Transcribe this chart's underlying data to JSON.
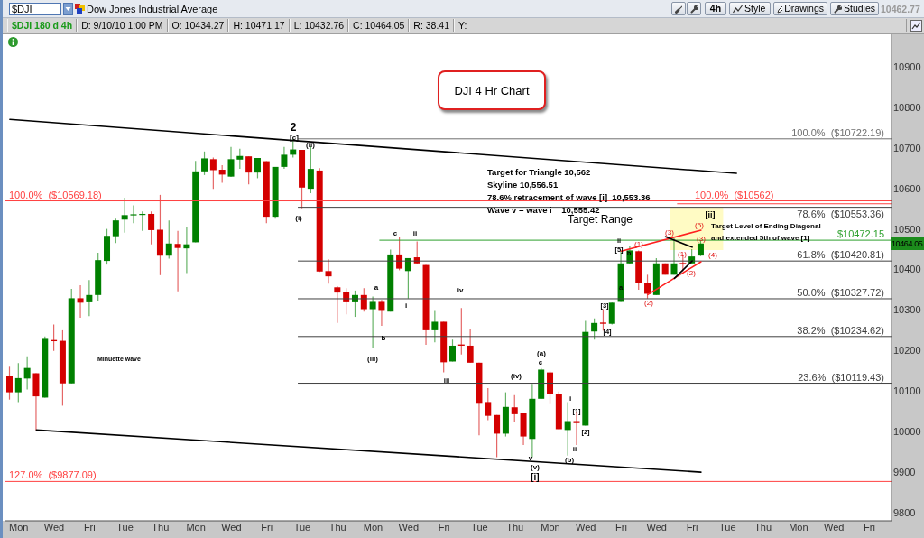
{
  "chart_data": {
    "type": "candlestick",
    "title": "DJI 4 Hr Chart",
    "categories": [
      null,
      "Mon",
      null,
      null,
      null,
      "Wed",
      null,
      null,
      null,
      "Fri",
      null,
      null,
      null,
      "Tue",
      null,
      null,
      null,
      "Thu",
      null,
      null,
      null,
      "Mon",
      null,
      null,
      null,
      "Wed",
      null,
      null,
      null,
      "Fri",
      null,
      null,
      null,
      "Tue",
      null,
      null,
      null,
      "Thu",
      null,
      null,
      null,
      "Mon",
      null,
      null,
      null,
      "Wed",
      null,
      null,
      null,
      "Fri",
      null,
      null,
      null,
      "Tue",
      null,
      null,
      null,
      "Thu",
      null,
      null,
      null,
      "Mon",
      null,
      null,
      null,
      "Wed",
      null,
      null,
      null,
      "Fri",
      null,
      null,
      null,
      "Wed",
      null,
      null,
      null,
      "Fri",
      null,
      null,
      null,
      "Tue",
      null,
      null,
      null,
      "Thu",
      null,
      null,
      null,
      "Mon",
      null,
      null,
      null,
      "Wed",
      null,
      null,
      null,
      "Fri",
      null,
      null
    ],
    "ohlc": [
      [
        10138,
        10160,
        10079,
        10097
      ],
      [
        10097,
        10169,
        10073,
        10132
      ],
      [
        10131,
        10186,
        10104,
        10157
      ],
      [
        10144,
        10144,
        10004,
        10087
      ],
      [
        10084,
        10235,
        10084,
        10231
      ],
      [
        10226,
        10264,
        10199,
        10223
      ],
      [
        10224,
        10250,
        10064,
        10119
      ],
      [
        10119,
        10352,
        10119,
        10329
      ],
      [
        10329,
        10361,
        10281,
        10318
      ],
      [
        10319,
        10374,
        10285,
        10337
      ],
      [
        10337,
        10441,
        10322,
        10423
      ],
      [
        10421,
        10500,
        10412,
        10483
      ],
      [
        10482,
        10525,
        10465,
        10521
      ],
      [
        10523,
        10577,
        10491,
        10534
      ],
      [
        10534,
        10558,
        10514,
        10536
      ],
      [
        10535,
        10543,
        10495,
        10537
      ],
      [
        10537,
        10543,
        10462,
        10497
      ],
      [
        10498,
        10584,
        10386,
        10434
      ],
      [
        10434,
        10521,
        10427,
        10464
      ],
      [
        10463,
        10495,
        10346,
        10453
      ],
      [
        10452,
        10506,
        10391,
        10462
      ],
      [
        10467,
        10668,
        10467,
        10642
      ],
      [
        10642,
        10691,
        10633,
        10674
      ],
      [
        10672,
        10676,
        10599,
        10645
      ],
      [
        10646,
        10657,
        10614,
        10634
      ],
      [
        10629,
        10702,
        10628,
        10672
      ],
      [
        10671,
        10698,
        10648,
        10680
      ],
      [
        10679,
        10679,
        10610,
        10639
      ],
      [
        10639,
        10675,
        10625,
        10675
      ],
      [
        10667,
        10667,
        10514,
        10530
      ],
      [
        10530,
        10653,
        10525,
        10653
      ],
      [
        10653,
        10702,
        10648,
        10683
      ],
      [
        10683,
        10722,
        10676,
        10696
      ],
      [
        10695,
        10695,
        10551,
        10602
      ],
      [
        10599,
        10704,
        10588,
        10648
      ],
      [
        10644,
        10650,
        10394,
        10395
      ],
      [
        10396,
        10425,
        10365,
        10383
      ],
      [
        10356,
        10359,
        10268,
        10343
      ],
      [
        10345,
        10354,
        10289,
        10319
      ],
      [
        10319,
        10348,
        10283,
        10337
      ],
      [
        10337,
        10354,
        10296,
        10302
      ],
      [
        10302,
        10333,
        10207,
        10320
      ],
      [
        10320,
        10325,
        10261,
        10300
      ],
      [
        10296,
        10449,
        10296,
        10437
      ],
      [
        10437,
        10480,
        10398,
        10402
      ],
      [
        10396,
        10428,
        10328,
        10428
      ],
      [
        10430,
        10469,
        10413,
        10415
      ],
      [
        10411,
        10411,
        10214,
        10250
      ],
      [
        10250,
        10300,
        10220,
        10271
      ],
      [
        10271,
        10271,
        10146,
        10171
      ],
      [
        10173,
        10227,
        10173,
        10212
      ],
      [
        10215,
        10305,
        10190,
        10212
      ],
      [
        10212,
        10253,
        10170,
        10170
      ],
      [
        10170,
        10170,
        9991,
        10071
      ],
      [
        10073,
        10107,
        10028,
        10039
      ],
      [
        10041,
        10041,
        9937,
        9995
      ],
      [
        9995,
        10097,
        9988,
        10061
      ],
      [
        10060,
        10090,
        10023,
        10043
      ],
      [
        10045,
        10045,
        9967,
        9988
      ],
      [
        9982,
        10118,
        9937,
        10081
      ],
      [
        10081,
        10157,
        10081,
        10153
      ],
      [
        10146,
        10149,
        10070,
        10092
      ],
      [
        10092,
        10099,
        10006,
        10006
      ],
      [
        10004,
        10073,
        9941,
        10026
      ],
      [
        10026,
        10050,
        9967,
        10021
      ],
      [
        10015,
        10273,
        10015,
        10246
      ],
      [
        10247,
        10279,
        10227,
        10268
      ],
      [
        10269,
        10302,
        10249,
        10266
      ],
      [
        10266,
        10318,
        10264,
        10318
      ],
      [
        10320,
        10447,
        10320,
        10415
      ],
      [
        10415,
        10459,
        10413,
        10447
      ],
      [
        10445,
        10447,
        10350,
        10366
      ],
      [
        10366,
        10387,
        10328,
        10340
      ],
      [
        10337,
        10428,
        10337,
        10415
      ],
      [
        10415,
        10415,
        10387,
        10387
      ],
      [
        10387,
        10477,
        10387,
        10415
      ],
      [
        10416,
        10436,
        10395,
        10413
      ],
      [
        10415,
        10450,
        10413,
        10432
      ],
      [
        10434.27,
        10471.17,
        10432.76,
        10464.05
      ],
      null,
      null,
      null,
      null,
      null,
      null,
      null,
      null,
      null,
      null,
      null,
      null,
      null,
      null,
      null,
      null,
      null,
      null,
      null,
      null,
      null
    ],
    "colors": [
      "#d40000",
      "#008000",
      "#008000",
      "#d40000",
      "#008000",
      "#d40000",
      "#d40000",
      "#008000",
      "#d40000",
      "#008000",
      "#008000",
      "#008000",
      "#008000",
      "#008000",
      "#008000",
      "#008000",
      "#d40000",
      "#d40000",
      "#008000",
      "#d40000",
      "#008000",
      "#008000",
      "#008000",
      "#d40000",
      "#d40000",
      "#008000",
      "#008000",
      "#d40000",
      "#008000",
      "#d40000",
      "#008000",
      "#008000",
      "#008000",
      "#d40000",
      "#008000",
      "#d40000",
      "#d40000",
      "#d40000",
      "#d40000",
      "#008000",
      "#d40000",
      "#008000",
      "#d40000",
      "#008000",
      "#d40000",
      "#008000",
      "#d40000",
      "#d40000",
      "#008000",
      "#d40000",
      "#008000",
      "#d40000",
      "#d40000",
      "#d40000",
      "#d40000",
      "#d40000",
      "#008000",
      "#d40000",
      "#d40000",
      "#008000",
      "#008000",
      "#d40000",
      "#d40000",
      "#008000",
      "#d40000",
      "#008000",
      "#008000",
      "#d40000",
      "#008000",
      "#008000",
      "#008000",
      "#d40000",
      "#d40000",
      "#008000",
      "#d40000",
      "#008000",
      "#d40000",
      "#008000",
      "#008000",
      null,
      null,
      null,
      null,
      null,
      null,
      null,
      null,
      null,
      null,
      null,
      null,
      null,
      null,
      null,
      null,
      null,
      null,
      null,
      null,
      null
    ],
    "series": [
      {
        "type": "line",
        "color": "#000000",
        "values": [
          10770,
          null,
          null,
          null,
          null,
          null,
          null,
          null,
          null,
          null,
          null,
          null,
          null,
          null,
          null,
          null,
          null,
          null,
          null,
          null,
          null,
          null,
          null,
          null,
          null,
          null,
          null,
          null,
          null,
          null,
          null,
          null,
          null,
          null,
          null,
          null,
          null,
          null,
          null,
          null,
          null,
          null,
          null,
          null,
          null,
          null,
          null,
          null,
          null,
          null,
          null,
          null,
          null,
          null,
          null,
          null,
          null,
          null,
          null,
          null,
          null,
          null,
          null,
          null,
          null,
          null,
          null,
          null,
          null,
          null,
          null,
          null,
          null,
          null,
          null,
          null,
          null,
          null,
          null,
          null,
          null,
          null,
          10637,
          null,
          null,
          null,
          null,
          null,
          null,
          null,
          null,
          null,
          null,
          null,
          null,
          null,
          null,
          null,
          null,
          null
        ]
      },
      {
        "type": "line",
        "color": "#000000",
        "values": [
          null,
          null,
          null,
          10004,
          null,
          null,
          null,
          null,
          null,
          null,
          null,
          null,
          null,
          null,
          null,
          null,
          null,
          null,
          null,
          null,
          null,
          null,
          null,
          null,
          null,
          null,
          null,
          null,
          null,
          null,
          null,
          null,
          null,
          null,
          null,
          null,
          null,
          null,
          null,
          null,
          null,
          null,
          null,
          null,
          null,
          null,
          null,
          null,
          null,
          null,
          null,
          null,
          null,
          null,
          null,
          null,
          null,
          null,
          null,
          null,
          null,
          null,
          null,
          null,
          null,
          null,
          null,
          null,
          null,
          null,
          null,
          null,
          null,
          null,
          null,
          null,
          null,
          null,
          9900,
          null,
          null,
          null,
          null,
          null,
          null,
          null,
          null,
          null,
          null,
          null,
          null,
          null,
          null,
          null,
          null,
          null,
          null,
          null,
          null,
          null
        ]
      },
      {
        "type": "line",
        "color": "#ff2020",
        "values": [
          null,
          null,
          null,
          null,
          null,
          null,
          null,
          null,
          null,
          null,
          null,
          null,
          null,
          null,
          null,
          null,
          null,
          null,
          null,
          null,
          null,
          null,
          null,
          null,
          null,
          null,
          null,
          null,
          null,
          null,
          null,
          null,
          null,
          null,
          null,
          null,
          null,
          null,
          null,
          null,
          null,
          null,
          null,
          null,
          null,
          null,
          null,
          null,
          null,
          null,
          null,
          null,
          null,
          null,
          null,
          null,
          null,
          null,
          null,
          null,
          null,
          null,
          null,
          null,
          null,
          null,
          null,
          null,
          null,
          10445,
          null,
          null,
          null,
          null,
          null,
          null,
          null,
          null,
          10497,
          null,
          null,
          null,
          null,
          null,
          null,
          null,
          null,
          null,
          null,
          null,
          null,
          null,
          null,
          null,
          null,
          null,
          null,
          null,
          null,
          null
        ]
      },
      {
        "type": "line",
        "color": "#ff2020",
        "values": [
          null,
          null,
          null,
          null,
          null,
          null,
          null,
          null,
          null,
          null,
          null,
          null,
          null,
          null,
          null,
          null,
          null,
          null,
          null,
          null,
          null,
          null,
          null,
          null,
          null,
          null,
          null,
          null,
          null,
          null,
          null,
          null,
          null,
          null,
          null,
          null,
          null,
          null,
          null,
          null,
          null,
          null,
          null,
          null,
          null,
          null,
          null,
          null,
          null,
          null,
          null,
          null,
          null,
          null,
          null,
          null,
          null,
          null,
          null,
          null,
          null,
          null,
          null,
          null,
          null,
          null,
          null,
          null,
          null,
          null,
          null,
          null,
          10338,
          null,
          null,
          null,
          null,
          null,
          10419,
          null,
          null,
          null,
          null,
          null,
          null,
          null,
          null,
          null,
          null,
          null,
          null,
          null,
          null,
          null,
          null,
          null,
          null,
          null,
          null,
          null
        ]
      },
      {
        "type": "line",
        "color": "#000000",
        "values": [
          null,
          null,
          null,
          null,
          null,
          null,
          null,
          null,
          null,
          null,
          null,
          null,
          null,
          null,
          null,
          null,
          null,
          null,
          null,
          null,
          null,
          null,
          null,
          null,
          null,
          null,
          null,
          null,
          null,
          null,
          null,
          null,
          null,
          null,
          null,
          null,
          null,
          null,
          null,
          null,
          null,
          null,
          null,
          null,
          null,
          null,
          null,
          null,
          null,
          null,
          null,
          null,
          null,
          null,
          null,
          null,
          null,
          null,
          null,
          null,
          null,
          null,
          null,
          null,
          null,
          null,
          null,
          null,
          null,
          null,
          null,
          null,
          null,
          null,
          10481,
          null,
          null,
          10455,
          null,
          null,
          null,
          null,
          null,
          null,
          null,
          null,
          null,
          null,
          null,
          null,
          null,
          null,
          null,
          null,
          null,
          null,
          null,
          null,
          null,
          null
        ]
      },
      {
        "type": "line",
        "color": "#000000",
        "values": [
          null,
          null,
          null,
          null,
          null,
          null,
          null,
          null,
          null,
          null,
          null,
          null,
          null,
          null,
          null,
          null,
          null,
          null,
          null,
          null,
          null,
          null,
          null,
          null,
          null,
          null,
          null,
          null,
          null,
          null,
          null,
          null,
          null,
          null,
          null,
          null,
          null,
          null,
          null,
          null,
          null,
          null,
          null,
          null,
          null,
          null,
          null,
          null,
          null,
          null,
          null,
          null,
          null,
          null,
          null,
          null,
          null,
          null,
          null,
          null,
          null,
          null,
          null,
          null,
          null,
          null,
          null,
          null,
          null,
          null,
          null,
          null,
          null,
          null,
          null,
          10378,
          null,
          10421,
          null,
          null,
          null,
          null,
          null,
          null,
          null,
          null,
          null,
          null,
          null,
          null,
          null,
          null,
          null,
          null,
          null,
          null,
          null,
          null,
          null,
          null
        ]
      }
    ],
    "ylim": [
      9780,
      10980
    ],
    "yticks": [
      9800,
      9900,
      10000,
      10100,
      10200,
      10300,
      10400,
      10500,
      10600,
      10700,
      10800,
      10900
    ],
    "bands": [
      {
        "axis": "y",
        "from": 10448,
        "to": 10553,
        "color": "#fffbc4"
      }
    ],
    "ref_lines": [
      {
        "axis": "y",
        "value": 10722.19,
        "label": "100.0%  ($10722.19)",
        "color": "#707070"
      },
      {
        "axis": "y",
        "value": 10569.18,
        "label": "100.0%  ($10569.18)",
        "color": "#ff4040"
      },
      {
        "axis": "y",
        "value": 10562,
        "label": "100.0%  ($10562)",
        "color": "#ff4040"
      },
      {
        "axis": "y",
        "value": 10553.36,
        "label": "78.6%  ($10553.36)",
        "color": "#404040"
      },
      {
        "axis": "y",
        "value": 10472.15,
        "label": "$10472.15",
        "color": "#2ca02c"
      },
      {
        "axis": "y",
        "value": 10420.81,
        "label": "61.8%  ($10420.81)",
        "color": "#404040"
      },
      {
        "axis": "y",
        "value": 10327.72,
        "label": "50.0%  ($10327.72)",
        "color": "#404040"
      },
      {
        "axis": "y",
        "value": 10234.62,
        "label": "38.2%  ($10234.62)",
        "color": "#404040"
      },
      {
        "axis": "y",
        "value": 10119.43,
        "label": "23.6%  ($10119.43)",
        "color": "#404040"
      },
      {
        "axis": "y",
        "value": 9877.09,
        "label": "127.0%  ($9877.09)",
        "color": "#ff4040"
      }
    ],
    "annotations": [
      "$DJI",
      "Dow Jones Industrial Average",
      "4h",
      "Style",
      "Drawings",
      "Studies",
      "10462.77",
      "$DJI 180 d 4h",
      "D: 9/10/10 1:00 PM",
      "O: 10434.27",
      "H: 10471.17",
      "L: 10432.76",
      "C: 10464.05",
      "R: 38.41",
      "Y:",
      "10464.05",
      "Target for Triangle 10,562",
      "Skyline 10,556.51",
      "78.6% retracement of wave [i]  10,553.36",
      "Wave v = wave i    10,555.42",
      "Target Range",
      "Target Level of Ending Diagonal",
      "and extended 5th of wave [1]",
      "Minuette wave",
      "2",
      "[c]",
      "(ii)",
      "(i)",
      "c",
      "ii",
      "a",
      "i",
      "b",
      "(iii)",
      "iv",
      "iii",
      "(a)",
      "c",
      "(iv)",
      "i",
      "[1]",
      "[2]",
      "ii",
      "v",
      "(v)",
      "[i]",
      "(b)",
      "[3]",
      "[4]",
      "ii",
      "[5]",
      "b",
      "(1)",
      "a",
      "(2)",
      "(3)",
      "(5)",
      "(3)",
      "(1)",
      "(4)",
      "(2)",
      "[ii]"
    ]
  }
}
